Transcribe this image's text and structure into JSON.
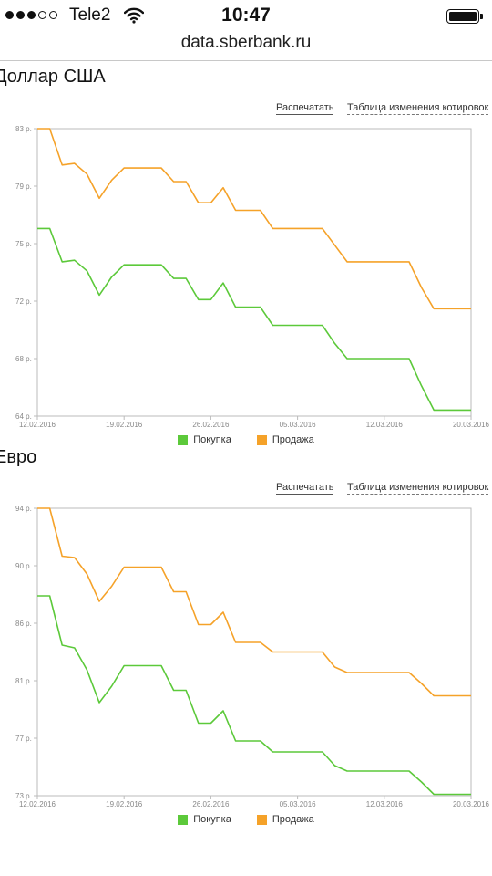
{
  "status_bar": {
    "carrier": "Tele2",
    "time": "10:47",
    "signal_bars": 3,
    "signal_total": 5,
    "battery_level": 1.0
  },
  "url": "data.sberbank.ru",
  "links": {
    "print": "Распечатать",
    "table": "Таблица изменения котировок"
  },
  "colors": {
    "buy": "#5cc93a",
    "sell": "#f5a229",
    "axis": "#bbbbbb",
    "tick_text": "#888888"
  },
  "chart_data": [
    {
      "type": "line",
      "title": "Доллар США",
      "x_ticks": [
        "12.02.2016",
        "19.02.2016",
        "26.02.2016",
        "05.03.2016",
        "12.03.2016",
        "20.03.2016"
      ],
      "x_tick_indices": [
        0,
        7,
        14,
        21,
        28,
        35
      ],
      "x_count": 36,
      "y_ticks": [
        "83 р.",
        "79 р.",
        "75 р.",
        "72 р.",
        "68 р.",
        "64 р."
      ],
      "ylim": [
        64,
        83
      ],
      "grid": false,
      "legend_position": "bottom",
      "series": [
        {
          "name": "Покупка",
          "color": "#5cc93a",
          "values": [
            76.4,
            76.4,
            74.2,
            74.3,
            73.6,
            72.0,
            73.2,
            74.0,
            74.0,
            74.0,
            74.0,
            73.1,
            73.1,
            71.7,
            71.7,
            72.8,
            71.2,
            71.2,
            71.2,
            70.0,
            70.0,
            70.0,
            70.0,
            70.0,
            68.8,
            67.8,
            67.8,
            67.8,
            67.8,
            67.8,
            67.8,
            66.0,
            64.4,
            64.4,
            64.4,
            64.4
          ]
        },
        {
          "name": "Продажа",
          "color": "#f5a229",
          "values": [
            83.0,
            83.0,
            80.6,
            80.7,
            80.0,
            78.4,
            79.6,
            80.4,
            80.4,
            80.4,
            80.4,
            79.5,
            79.5,
            78.1,
            78.1,
            79.1,
            77.6,
            77.6,
            77.6,
            76.4,
            76.4,
            76.4,
            76.4,
            76.4,
            75.3,
            74.2,
            74.2,
            74.2,
            74.2,
            74.2,
            74.2,
            72.5,
            71.1,
            71.1,
            71.1,
            71.1
          ]
        }
      ]
    },
    {
      "type": "line",
      "title": "Евро",
      "x_ticks": [
        "12.02.2016",
        "19.02.2016",
        "26.02.2016",
        "05.03.2016",
        "12.03.2016",
        "20.03.2016"
      ],
      "x_tick_indices": [
        0,
        7,
        14,
        21,
        28,
        35
      ],
      "x_count": 36,
      "y_ticks": [
        "94 р.",
        "90 р.",
        "86 р.",
        "81 р.",
        "77 р.",
        "73 р."
      ],
      "ylim": [
        73,
        94
      ],
      "grid": false,
      "legend_position": "bottom",
      "series": [
        {
          "name": "Покупка",
          "color": "#5cc93a",
          "values": [
            87.6,
            87.6,
            84.0,
            83.8,
            82.2,
            79.8,
            81.0,
            82.5,
            82.5,
            82.5,
            82.5,
            80.7,
            80.7,
            78.3,
            78.3,
            79.2,
            77.0,
            77.0,
            77.0,
            76.2,
            76.2,
            76.2,
            76.2,
            76.2,
            75.2,
            74.8,
            74.8,
            74.8,
            74.8,
            74.8,
            74.8,
            74.0,
            73.1,
            73.1,
            73.1,
            73.1
          ]
        },
        {
          "name": "Продажа",
          "color": "#f5a229",
          "values": [
            94.0,
            94.0,
            90.5,
            90.4,
            89.2,
            87.2,
            88.3,
            89.7,
            89.7,
            89.7,
            89.7,
            87.9,
            87.9,
            85.5,
            85.5,
            86.4,
            84.2,
            84.2,
            84.2,
            83.5,
            83.5,
            83.5,
            83.5,
            83.5,
            82.4,
            82.0,
            82.0,
            82.0,
            82.0,
            82.0,
            82.0,
            81.2,
            80.3,
            80.3,
            80.3,
            80.3
          ]
        }
      ]
    }
  ]
}
